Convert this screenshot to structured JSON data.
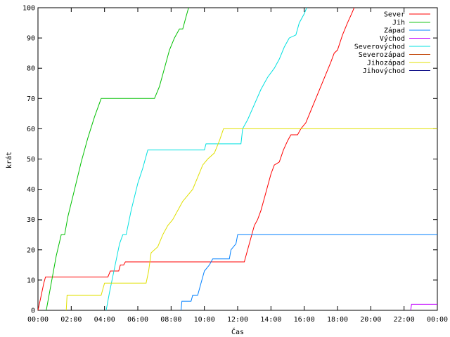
{
  "chart_data": {
    "type": "line",
    "xlabel": "Čas",
    "ylabel": "krát",
    "xlim": [
      0,
      24
    ],
    "ylim": [
      0,
      100
    ],
    "grid": false,
    "legend_placement": "top-right",
    "x_ticks": [
      {
        "value": 0,
        "label": "00:00"
      },
      {
        "value": 2,
        "label": "02:00"
      },
      {
        "value": 4,
        "label": "04:00"
      },
      {
        "value": 6,
        "label": "06:00"
      },
      {
        "value": 8,
        "label": "08:00"
      },
      {
        "value": 10,
        "label": "10:00"
      },
      {
        "value": 12,
        "label": "12:00"
      },
      {
        "value": 14,
        "label": "14:00"
      },
      {
        "value": 16,
        "label": "16:00"
      },
      {
        "value": 18,
        "label": "18:00"
      },
      {
        "value": 20,
        "label": "20:00"
      },
      {
        "value": 22,
        "label": "22:00"
      },
      {
        "value": 24,
        "label": "00:00"
      }
    ],
    "y_ticks": [
      0,
      10,
      20,
      30,
      40,
      50,
      60,
      70,
      80,
      90,
      100
    ],
    "series": [
      {
        "name": "Sever",
        "color": "#ff0000",
        "points": [
          [
            0.0,
            0
          ],
          [
            0.08,
            2
          ],
          [
            0.2,
            5
          ],
          [
            0.35,
            9
          ],
          [
            0.45,
            11
          ],
          [
            4.2,
            11
          ],
          [
            4.35,
            13
          ],
          [
            4.85,
            13
          ],
          [
            4.95,
            15
          ],
          [
            5.15,
            15
          ],
          [
            5.25,
            16
          ],
          [
            12.4,
            16
          ],
          [
            12.45,
            17
          ],
          [
            12.6,
            20
          ],
          [
            12.8,
            24
          ],
          [
            13.0,
            28
          ],
          [
            13.2,
            30
          ],
          [
            13.4,
            33
          ],
          [
            13.6,
            37
          ],
          [
            13.8,
            41
          ],
          [
            14.0,
            45
          ],
          [
            14.2,
            48
          ],
          [
            14.5,
            49
          ],
          [
            14.75,
            53
          ],
          [
            15.0,
            56
          ],
          [
            15.2,
            58
          ],
          [
            15.6,
            58
          ],
          [
            15.8,
            60
          ],
          [
            16.1,
            62
          ],
          [
            16.4,
            66
          ],
          [
            16.7,
            70
          ],
          [
            17.0,
            74
          ],
          [
            17.3,
            78
          ],
          [
            17.6,
            82
          ],
          [
            17.8,
            85
          ],
          [
            18.0,
            86
          ],
          [
            18.3,
            91
          ],
          [
            18.6,
            95
          ],
          [
            18.85,
            98
          ],
          [
            19.0,
            100
          ]
        ]
      },
      {
        "name": "Jih",
        "color": "#00c000",
        "points": [
          [
            0.5,
            0
          ],
          [
            0.8,
            9
          ],
          [
            1.1,
            18
          ],
          [
            1.4,
            25
          ],
          [
            1.6,
            25
          ],
          [
            1.8,
            31
          ],
          [
            2.2,
            40
          ],
          [
            2.6,
            49
          ],
          [
            3.0,
            57
          ],
          [
            3.4,
            64
          ],
          [
            3.8,
            70
          ],
          [
            7.0,
            70
          ],
          [
            7.3,
            74
          ],
          [
            7.6,
            80
          ],
          [
            7.9,
            86
          ],
          [
            8.2,
            90
          ],
          [
            8.5,
            93
          ],
          [
            8.7,
            93
          ],
          [
            8.9,
            97
          ],
          [
            9.05,
            100
          ]
        ]
      },
      {
        "name": "Západ",
        "color": "#0080ff",
        "points": [
          [
            8.6,
            0
          ],
          [
            8.65,
            3
          ],
          [
            9.2,
            3
          ],
          [
            9.3,
            5
          ],
          [
            9.6,
            5
          ],
          [
            9.8,
            9
          ],
          [
            10.0,
            13
          ],
          [
            10.3,
            15
          ],
          [
            10.5,
            17
          ],
          [
            11.5,
            17
          ],
          [
            11.6,
            20
          ],
          [
            11.9,
            22
          ],
          [
            12.0,
            25
          ],
          [
            24.0,
            25
          ]
        ]
      },
      {
        "name": "Východ",
        "color": "#c000ff",
        "points": [
          [
            22.4,
            0
          ],
          [
            22.45,
            2
          ],
          [
            24.0,
            2
          ]
        ]
      },
      {
        "name": "Severovýchod",
        "color": "#00e0e0",
        "points": [
          [
            4.1,
            0
          ],
          [
            4.3,
            6
          ],
          [
            4.6,
            14
          ],
          [
            4.9,
            22
          ],
          [
            5.1,
            25
          ],
          [
            5.3,
            25
          ],
          [
            5.6,
            33
          ],
          [
            6.0,
            42
          ],
          [
            6.3,
            47
          ],
          [
            6.6,
            53
          ],
          [
            10.0,
            53
          ],
          [
            10.1,
            55
          ],
          [
            12.2,
            55
          ],
          [
            12.3,
            60
          ],
          [
            12.6,
            63
          ],
          [
            13.0,
            68
          ],
          [
            13.4,
            73
          ],
          [
            13.8,
            77
          ],
          [
            14.2,
            80
          ],
          [
            14.5,
            83
          ],
          [
            14.8,
            87
          ],
          [
            15.1,
            90
          ],
          [
            15.5,
            91
          ],
          [
            15.7,
            95
          ],
          [
            16.0,
            98
          ],
          [
            16.15,
            100
          ]
        ]
      },
      {
        "name": "Severozápad",
        "color": "#c04000",
        "points": []
      },
      {
        "name": "Jihozápad",
        "color": "#e0e000",
        "points": [
          [
            1.7,
            0
          ],
          [
            1.75,
            5
          ],
          [
            3.8,
            5
          ],
          [
            3.9,
            7
          ],
          [
            4.0,
            9
          ],
          [
            6.5,
            9
          ],
          [
            6.65,
            13
          ],
          [
            6.8,
            19
          ],
          [
            7.2,
            21
          ],
          [
            7.5,
            25
          ],
          [
            7.8,
            28
          ],
          [
            8.1,
            30
          ],
          [
            8.4,
            33
          ],
          [
            8.7,
            36
          ],
          [
            9.0,
            38
          ],
          [
            9.3,
            40
          ],
          [
            9.6,
            44
          ],
          [
            9.9,
            48
          ],
          [
            10.2,
            50
          ],
          [
            10.6,
            52
          ],
          [
            10.9,
            56
          ],
          [
            11.15,
            60
          ],
          [
            24.0,
            60
          ]
        ]
      },
      {
        "name": "Jihovýchod",
        "color": "#000080",
        "points": []
      }
    ]
  }
}
